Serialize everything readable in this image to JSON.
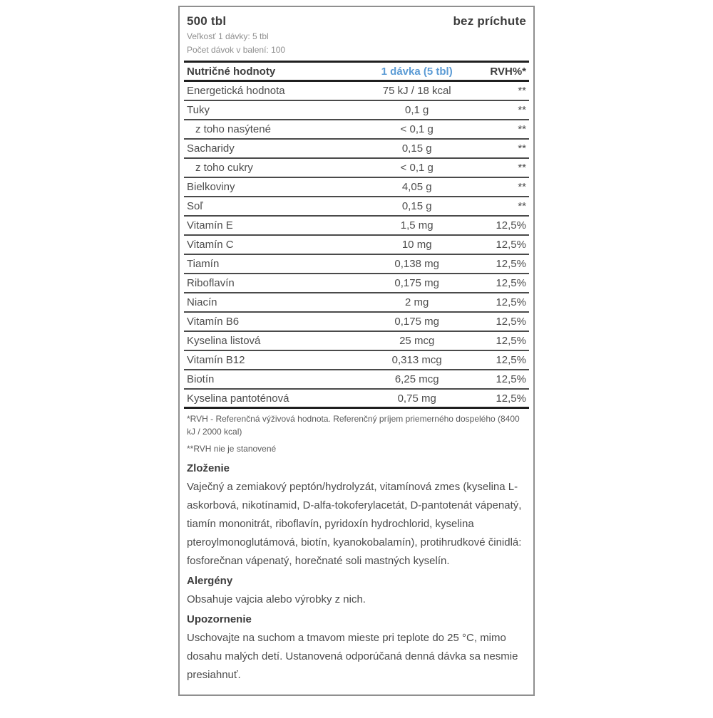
{
  "header": {
    "size": "500 tbl",
    "flavor": "bez príchute",
    "serving_size": "Veľkosť 1 dávky: 5 tbl",
    "servings_per_pack": "Počet dávok v balení: 100"
  },
  "table": {
    "columns": {
      "name": "Nutričné hodnoty",
      "per_serving": "1 dávka (5 tbl)",
      "rvh": "RVH%*"
    },
    "rows": [
      {
        "name": "Energetická hodnota",
        "value": "75 kJ / 18 kcal",
        "rvh": "**",
        "indent": false
      },
      {
        "name": "Tuky",
        "value": "0,1 g",
        "rvh": "**",
        "indent": false
      },
      {
        "name": "z toho nasýtené",
        "value": "< 0,1 g",
        "rvh": "**",
        "indent": true
      },
      {
        "name": "Sacharidy",
        "value": "0,15 g",
        "rvh": "**",
        "indent": false
      },
      {
        "name": "z toho cukry",
        "value": "< 0,1 g",
        "rvh": "**",
        "indent": true
      },
      {
        "name": "Bielkoviny",
        "value": "4,05 g",
        "rvh": "**",
        "indent": false
      },
      {
        "name": "Soľ",
        "value": "0,15 g",
        "rvh": "**",
        "indent": false
      },
      {
        "name": "Vitamín E",
        "value": "1,5 mg",
        "rvh": "12,5%",
        "indent": false
      },
      {
        "name": "Vitamín C",
        "value": "10 mg",
        "rvh": "12,5%",
        "indent": false
      },
      {
        "name": "Tiamín",
        "value": "0,138 mg",
        "rvh": "12,5%",
        "indent": false
      },
      {
        "name": "Riboflavín",
        "value": "0,175 mg",
        "rvh": "12,5%",
        "indent": false
      },
      {
        "name": "Niacín",
        "value": "2 mg",
        "rvh": "12,5%",
        "indent": false
      },
      {
        "name": "Vitamín B6",
        "value": "0,175 mg",
        "rvh": "12,5%",
        "indent": false
      },
      {
        "name": "Kyselina listová",
        "value": "25 mcg",
        "rvh": "12,5%",
        "indent": false
      },
      {
        "name": "Vitamín B12",
        "value": "0,313 mcg",
        "rvh": "12,5%",
        "indent": false
      },
      {
        "name": "Biotín",
        "value": "6,25 mcg",
        "rvh": "12,5%",
        "indent": false
      },
      {
        "name": "Kyselina pantoténová",
        "value": "0,75 mg",
        "rvh": "12,5%",
        "indent": false
      }
    ]
  },
  "footnotes": [
    "*RVH - Referenčná výživová hodnota. Referenčný príjem priemerného dospelého (8400 kJ / 2000 kcal)",
    "**RVH nie je stanovené"
  ],
  "sections": [
    {
      "heading": "Zloženie",
      "body": "Vaječný a zemiakový peptón/hydrolyzát, vitamínová zmes (kyselina L-askorbová, nikotínamid, D-alfa-tokoferylacetát, D-pantotenát vápenatý, tiamín mononitrát, riboflavín, pyridoxín hydrochlorid, kyselina pteroylmonoglutámová, biotín, kyanokobalamín), protihrudkové činidlá: fosforečnan vápenatý, horečnaté soli mastných kyselín."
    },
    {
      "heading": "Alergény",
      "body": "Obsahuje vajcia alebo výrobky z nich."
    },
    {
      "heading": "Upozornenie",
      "body": "Uschovajte na suchom a tmavom mieste pri teplote do 25 °C, mimo dosahu malých detí. Ustanovená odporúčaná denná dávka sa nesmie presiahnuť."
    }
  ],
  "colors": {
    "accent_blue": "#5b9bd5",
    "rule_black": "#1f1f1f",
    "row_rule": "#4a4a4a",
    "box_border": "#8f8f8f",
    "text_dark": "#3d3d3d",
    "text_muted": "#8e8e8e"
  }
}
